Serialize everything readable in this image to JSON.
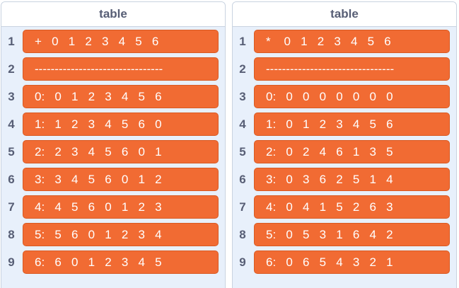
{
  "lists": [
    {
      "title": "table",
      "items": [
        {
          "index": "1",
          "value": "+   0   1   2   3   4   5   6"
        },
        {
          "index": "2",
          "value": "--------------------------------"
        },
        {
          "index": "3",
          "value": "0:   0   1   2   3   4   5   6"
        },
        {
          "index": "4",
          "value": "1:   1   2   3   4   5   6   0"
        },
        {
          "index": "5",
          "value": "2:   2   3   4   5   6   0   1"
        },
        {
          "index": "6",
          "value": "3:   3   4   5   6   0   1   2"
        },
        {
          "index": "7",
          "value": "4:   4   5   6   0   1   2   3"
        },
        {
          "index": "8",
          "value": "5:   5   6   0   1   2   3   4"
        },
        {
          "index": "9",
          "value": "6:   6   0   1   2   3   4   5"
        }
      ]
    },
    {
      "title": "table",
      "items": [
        {
          "index": "1",
          "value": "*    0   1   2   3   4   5   6"
        },
        {
          "index": "2",
          "value": "--------------------------------"
        },
        {
          "index": "3",
          "value": "0:   0   0   0   0   0   0   0"
        },
        {
          "index": "4",
          "value": "1:   0   1   2   3   4   5   6"
        },
        {
          "index": "5",
          "value": "2:   0   2   4   6   1   3   5"
        },
        {
          "index": "6",
          "value": "3:   0   3   6   2   5   1   4"
        },
        {
          "index": "7",
          "value": "4:   0   4   1   5   2   6   3"
        },
        {
          "index": "8",
          "value": "5:   0   5   3   1   6   4   2"
        },
        {
          "index": "9",
          "value": "6:   0   6   5   4   3   2   1"
        }
      ]
    }
  ]
}
